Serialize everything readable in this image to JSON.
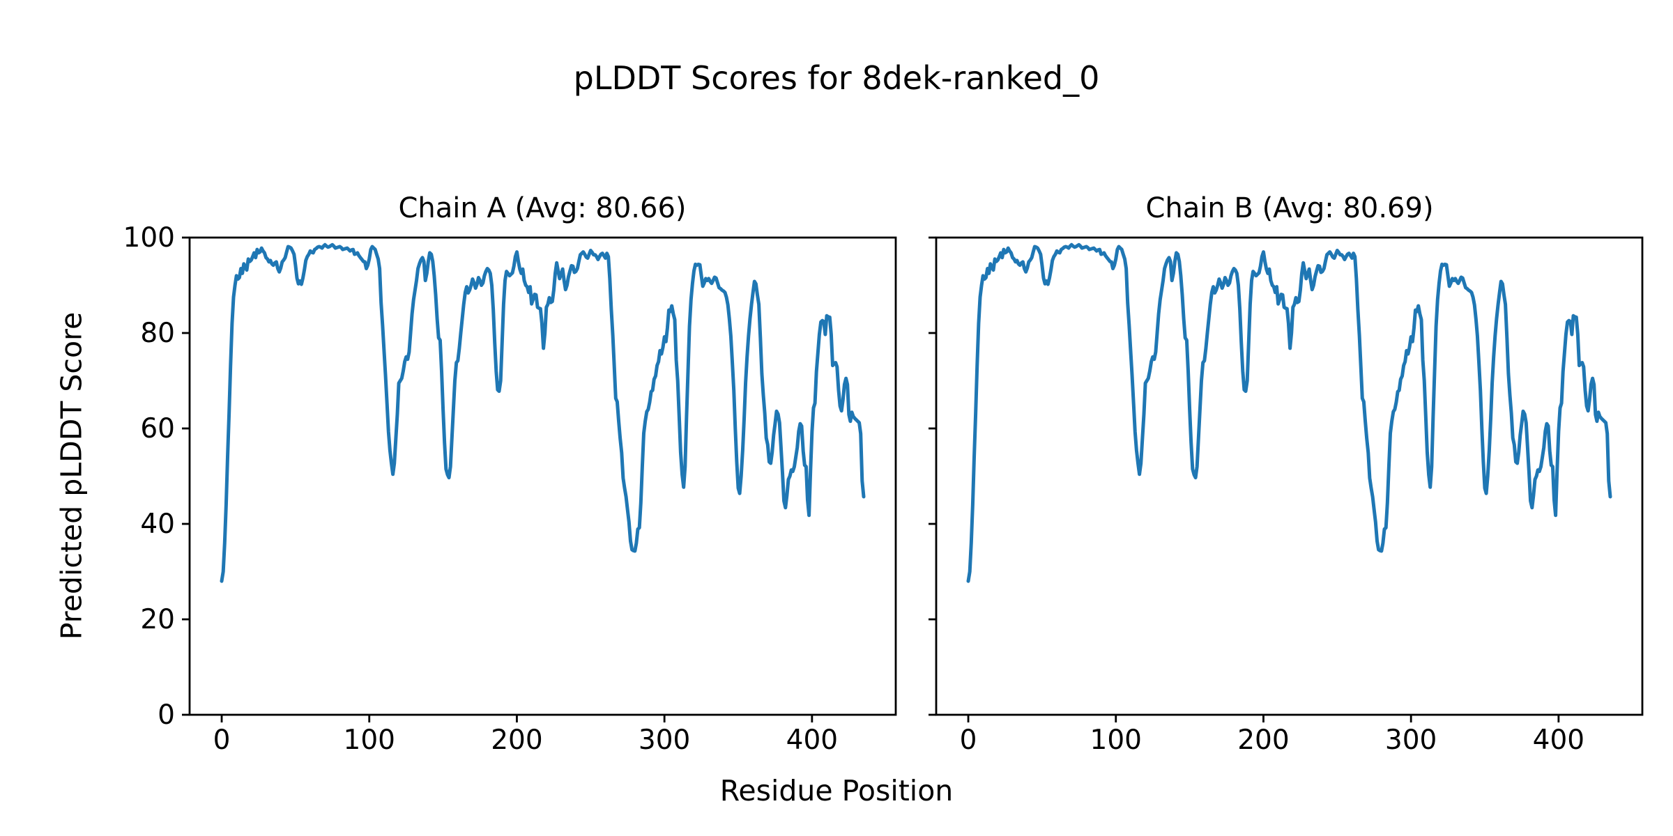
{
  "chart_data": {
    "type": "line",
    "title": "pLDDT Scores for 8dek-ranked_0",
    "xlabel": "Residue Position",
    "ylabel": "Predicted pLDDT Score",
    "line_color": "#1f77b4",
    "background_color": "#ffffff",
    "text_color": "#000000",
    "grid": false,
    "legend": "none",
    "xlim": [
      -21.75,
      456.75
    ],
    "ylim": [
      0,
      100
    ],
    "x_ticks": [
      0,
      100,
      200,
      300,
      400
    ],
    "y_ticks": [
      0,
      20,
      40,
      60,
      80,
      100
    ],
    "x_start": 0,
    "x_step": 1,
    "panels": [
      {
        "title": "Chain A (Avg: 80.66)",
        "chain": "A",
        "avg": 80.66,
        "values": [
          28,
          30,
          36,
          44,
          54,
          63,
          73,
          82,
          87.5,
          90,
          92,
          91.3,
          91.6,
          93.5,
          92.5,
          94.5,
          93.8,
          93.2,
          95.5,
          95,
          95.3,
          96,
          96.8,
          95.8,
          97.5,
          96.8,
          97,
          97.8,
          97.2,
          96.8,
          95.8,
          95.5,
          94.9,
          95.2,
          94.5,
          94.2,
          94.7,
          94.9,
          93.5,
          92.8,
          93.6,
          94.9,
          95.3,
          95.8,
          97,
          98.1,
          98,
          97.8,
          97.2,
          96.5,
          94.2,
          91.5,
          90.3,
          90.9,
          90.2,
          91.5,
          93.2,
          95.2,
          96,
          96.5,
          97.2,
          96.9,
          96.8,
          97.5,
          97.7,
          98,
          98.1,
          98,
          97.8,
          98.2,
          98.5,
          98.2,
          98,
          98.1,
          98.3,
          98.5,
          98.2,
          97.8,
          97.9,
          98,
          98.1,
          97.9,
          97.5,
          97.6,
          97.7,
          97.8,
          97.5,
          97.2,
          97.4,
          97.5,
          96.5,
          96.6,
          96.8,
          96.2,
          95.8,
          95.4,
          95,
          94.9,
          93.5,
          94.2,
          95.5,
          97.5,
          98.1,
          97.8,
          97.5,
          96.5,
          95.5,
          93.5,
          86.3,
          81.7,
          76.4,
          71.2,
          65.2,
          59.3,
          55.4,
          52.7,
          50.4,
          52.7,
          58,
          63,
          69.5,
          70,
          70.5,
          72,
          74,
          75,
          74.5,
          76,
          80,
          84,
          87,
          89,
          91,
          93.5,
          94.5,
          95.3,
          95.8,
          95,
          91,
          92.5,
          95,
          96.8,
          96.5,
          95,
          92,
          88,
          83,
          79,
          78.5,
          72,
          64,
          57,
          51.5,
          50.3,
          49.7,
          52,
          58,
          64,
          70,
          73.8,
          74.2,
          76.8,
          80,
          83,
          86,
          88.5,
          89.7,
          88.4,
          89,
          90,
          91.3,
          90.5,
          89.4,
          90.2,
          91.6,
          91,
          90,
          90.5,
          92,
          92.9,
          93.5,
          93.2,
          92.5,
          90,
          85,
          78,
          72,
          68.1,
          67.8,
          70,
          78,
          86,
          91,
          92.9,
          92.5,
          92,
          92.3,
          92.6,
          94,
          96,
          97,
          95,
          93.4,
          92.5,
          93.4,
          91,
          90,
          89.7,
          88.5,
          89.7,
          86.1,
          87,
          88.1,
          88,
          85.4,
          85.2,
          85.1,
          82,
          76.8,
          80,
          85.4,
          86,
          87.4,
          86.4,
          86.6,
          89,
          92.5,
          94.7,
          93,
          91.4,
          92.4,
          93.4,
          91,
          89.1,
          90,
          91.8,
          93,
          94.1,
          94,
          92.7,
          92.9,
          93.5,
          95,
          96.4,
          96.7,
          97,
          96.5,
          95.9,
          95.7,
          96.5,
          97.3,
          96.9,
          96.4,
          96.4,
          96,
          95.4,
          96,
          96.5,
          96.7,
          96.2,
          95.7,
          96.7,
          96,
          91.4,
          85,
          79.5,
          73,
          66.3,
          65.6,
          61.6,
          58,
          54.9,
          49.6,
          47.5,
          45.7,
          43,
          40.4,
          36.4,
          34.6,
          34.4,
          34.3,
          36,
          38.9,
          39.2,
          44.4,
          52,
          59,
          61.5,
          63.5,
          64,
          65.5,
          67.7,
          68,
          70.3,
          71,
          73.2,
          74,
          76.3,
          75.6,
          77,
          79.2,
          78.2,
          81,
          84.8,
          84.5,
          85.7,
          84,
          82.8,
          74.3,
          70,
          62.6,
          55,
          50.3,
          47.7,
          52,
          62.6,
          72,
          81.4,
          87,
          90.4,
          93,
          94.4,
          94.2,
          94.4,
          94.3,
          92,
          89.8,
          90.5,
          91.4,
          91,
          91.4,
          90.8,
          90.4,
          91,
          91.7,
          91.5,
          90.5,
          89.5,
          89.3,
          89,
          88.8,
          88.5,
          87.5,
          85.9,
          83,
          79.4,
          74,
          68,
          60,
          53,
          47.5,
          46.4,
          50,
          55.4,
          62,
          69.6,
          75,
          79.4,
          83,
          86,
          88.5,
          90.8,
          90.3,
          88,
          86,
          79,
          71.5,
          67,
          63.2,
          58,
          56.6,
          53,
          52.7,
          55,
          58.6,
          61,
          63.6,
          63,
          61.2,
          56,
          50.7,
          44.8,
          43.4,
          46,
          49.3,
          50,
          51.3,
          51,
          52,
          54,
          56,
          59.4,
          61,
          60.5,
          55.3,
          52.3,
          52,
          45,
          41.8,
          51,
          59.4,
          64.3,
          65.3,
          71.9,
          75.8,
          79.7,
          82.3,
          82.6,
          82.4,
          79.7,
          83.6,
          83.4,
          83.3,
          79.7,
          73.2,
          73.6,
          73.8,
          72.9,
          68,
          64.7,
          63.7,
          66,
          69.2,
          70.5,
          69.2,
          62.9,
          61.5,
          63.4,
          62.5,
          62.1,
          61.8,
          61.5,
          61.2,
          58.9,
          49,
          45.7
        ]
      },
      {
        "title": "Chain B (Avg: 80.69)",
        "chain": "B",
        "avg": 80.69,
        "values": [
          28,
          30,
          36,
          44,
          54,
          63,
          73,
          82,
          87.5,
          90,
          92,
          91.3,
          91.6,
          93.5,
          92.5,
          94.5,
          93.8,
          93.2,
          95.5,
          95,
          95.3,
          96,
          96.8,
          95.8,
          97.5,
          96.8,
          97,
          97.8,
          97.2,
          96.8,
          95.8,
          95.5,
          94.9,
          95.2,
          94.5,
          94.2,
          94.7,
          94.9,
          93.5,
          92.8,
          93.6,
          94.9,
          95.3,
          95.8,
          97,
          98.1,
          98,
          97.8,
          97.2,
          96.5,
          94.2,
          91.5,
          90.3,
          90.9,
          90.2,
          91.5,
          93.2,
          95.2,
          96,
          96.5,
          97.2,
          96.9,
          96.8,
          97.5,
          97.7,
          98,
          98.1,
          98,
          97.8,
          98.2,
          98.5,
          98.2,
          98,
          98.1,
          98.3,
          98.5,
          98.2,
          97.8,
          97.9,
          98,
          98.1,
          97.9,
          97.5,
          97.6,
          97.7,
          97.8,
          97.5,
          97.2,
          97.4,
          97.5,
          96.5,
          96.6,
          96.8,
          96.2,
          95.8,
          95.4,
          95,
          94.9,
          93.5,
          94.2,
          95.5,
          97.5,
          98.1,
          97.8,
          97.5,
          96.5,
          95.5,
          93.5,
          86.3,
          81.7,
          76.4,
          71.2,
          65.2,
          59.3,
          55.4,
          52.7,
          50.4,
          52.7,
          58,
          63,
          69.5,
          70,
          70.5,
          72,
          74,
          75,
          74.5,
          76,
          80,
          84,
          87,
          89,
          91,
          93.5,
          94.5,
          95.3,
          95.8,
          95,
          91,
          92.5,
          95,
          96.8,
          96.5,
          95,
          92,
          88,
          83,
          79,
          78.5,
          72,
          64,
          57,
          51.5,
          50.3,
          49.7,
          52,
          58,
          64,
          70,
          73.8,
          74.2,
          76.8,
          80,
          83,
          86,
          88.5,
          89.7,
          88.4,
          89,
          90,
          91.3,
          90.5,
          89.4,
          90.2,
          91.6,
          91,
          90,
          90.5,
          92,
          92.9,
          93.5,
          93.2,
          92.5,
          90,
          85,
          78,
          72,
          68.1,
          67.8,
          70,
          78,
          86,
          91,
          92.9,
          92.5,
          92,
          92.3,
          92.6,
          94,
          96,
          97,
          95,
          93.4,
          92.5,
          93.4,
          91,
          90,
          89.7,
          88.5,
          89.7,
          86.1,
          87,
          88.1,
          88,
          85.4,
          85.2,
          85.1,
          82,
          76.8,
          80,
          85.4,
          86,
          87.4,
          86.4,
          86.6,
          89,
          92.5,
          94.7,
          93,
          91.4,
          92.4,
          93.4,
          91,
          89.1,
          90,
          91.8,
          93,
          94.1,
          94,
          92.7,
          92.9,
          93.5,
          95,
          96.4,
          96.7,
          97,
          96.5,
          95.9,
          95.7,
          96.5,
          97.3,
          96.9,
          96.4,
          96.4,
          96,
          95.4,
          96,
          96.5,
          96.7,
          96.2,
          95.7,
          96.7,
          96,
          91.4,
          85,
          79.5,
          73,
          66.3,
          65.6,
          61.6,
          58,
          54.9,
          49.6,
          47.5,
          45.7,
          43,
          40.4,
          36.4,
          34.6,
          34.4,
          34.3,
          36,
          38.9,
          39.2,
          44.4,
          52,
          59,
          61.5,
          63.5,
          64,
          65.5,
          67.7,
          68,
          70.3,
          71,
          73.2,
          74,
          76.3,
          75.6,
          77,
          79.2,
          78.2,
          81,
          84.8,
          84.5,
          85.7,
          84,
          82.8,
          74.3,
          70,
          62.6,
          55,
          50.3,
          47.7,
          52,
          62.6,
          72,
          81.4,
          87,
          90.4,
          93,
          94.4,
          94.2,
          94.4,
          94.3,
          92,
          89.8,
          90.5,
          91.4,
          91,
          91.4,
          90.8,
          90.4,
          91,
          91.7,
          91.5,
          90.5,
          89.5,
          89.3,
          89,
          88.8,
          88.5,
          87.5,
          85.9,
          83,
          79.4,
          74,
          68,
          60,
          53,
          47.5,
          46.4,
          50,
          55.4,
          62,
          69.6,
          75,
          79.4,
          83,
          86,
          88.5,
          90.8,
          90.3,
          88,
          86,
          79,
          71.5,
          67,
          63.2,
          58,
          56.6,
          53,
          52.7,
          55,
          58.6,
          61,
          63.6,
          63,
          61.2,
          56,
          50.7,
          44.8,
          43.4,
          46,
          49.3,
          50,
          51.3,
          51,
          52,
          54,
          56,
          59.4,
          61,
          60.5,
          55.3,
          52.3,
          52,
          45,
          41.8,
          51,
          59.4,
          64.3,
          65.3,
          71.9,
          75.8,
          79.7,
          82.3,
          82.6,
          82.4,
          79.7,
          83.6,
          83.4,
          83.3,
          79.7,
          73.2,
          73.6,
          73.8,
          72.9,
          68,
          64.7,
          63.7,
          66,
          69.2,
          70.5,
          69.2,
          62.9,
          61.5,
          63.4,
          62.5,
          62.1,
          61.8,
          61.5,
          61.2,
          58.9,
          49,
          45.7
        ]
      }
    ]
  }
}
